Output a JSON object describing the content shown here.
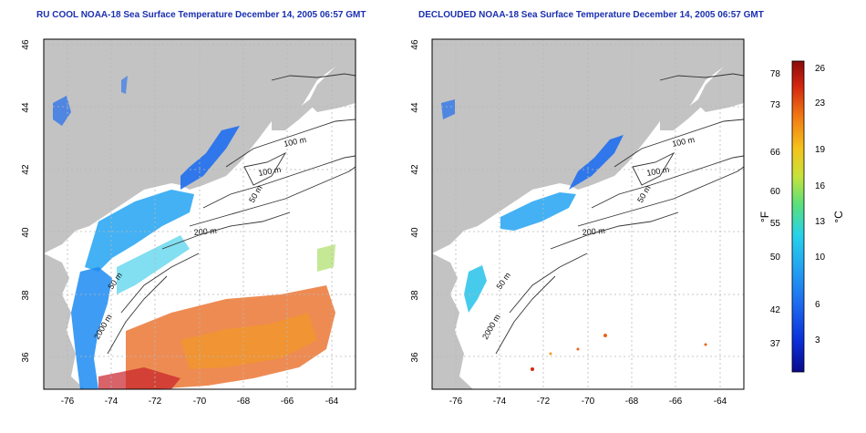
{
  "panels": [
    {
      "title": "RU COOL NOAA-18 Sea Surface Temperature December 14, 2005 06:57 GMT",
      "x_ticks": [
        "-76",
        "-74",
        "-72",
        "-70",
        "-68",
        "-66",
        "-64"
      ],
      "y_ticks": [
        "36",
        "38",
        "40",
        "42",
        "44",
        "46"
      ],
      "contour_labels": [
        "100 m",
        "100 m",
        "50 m",
        "200 m",
        "50 m",
        "2000 m"
      ]
    },
    {
      "title": "DECLOUDED NOAA-18 Sea Surface Temperature December 14, 2005 06:57 GMT",
      "x_ticks": [
        "-76",
        "-74",
        "-72",
        "-70",
        "-68",
        "-66",
        "-64"
      ],
      "y_ticks": [
        "36",
        "38",
        "40",
        "42",
        "44",
        "46"
      ],
      "contour_labels": [
        "100 m",
        "100 m",
        "50 m",
        "200 m",
        "50 m",
        "2000 m"
      ]
    }
  ],
  "colorbar": {
    "left_unit": "°F",
    "right_unit": "°C",
    "fahrenheit_ticks": [
      "78",
      "73",
      "66",
      "60",
      "55",
      "50",
      "42",
      "37"
    ],
    "celsius_ticks": [
      "26",
      "23",
      "19",
      "16",
      "13",
      "10",
      "6",
      "3"
    ],
    "colors": [
      "#0a0a8c",
      "#0b2fd8",
      "#1d6cf0",
      "#22a6f2",
      "#27d2ea",
      "#5be07a",
      "#c8e23a",
      "#f5c21b",
      "#f27a14",
      "#d3260f",
      "#8a0b0b"
    ]
  },
  "colors": {
    "land": "#c3c3c3",
    "grid": "#b8b8b8",
    "contour": "#333333",
    "title": "#1a2fb0"
  }
}
